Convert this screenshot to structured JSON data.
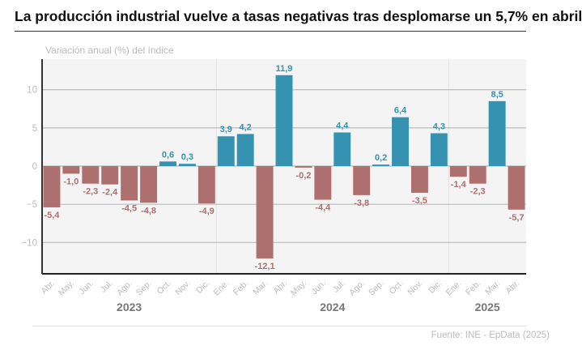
{
  "title": "La producción industrial vuelve a tasas negativas tras desplomarse un 5,7% en abril",
  "source": "Fuente: INE - EpData (2025)",
  "chart_data": {
    "type": "bar",
    "ylabel": "Variación anual (%) del índice",
    "categories": [
      "Abr.",
      "May.",
      "Jun.",
      "Jul.",
      "Ago.",
      "Sep.",
      "Oct.",
      "Nov.",
      "Dic.",
      "Ene.",
      "Feb.",
      "Mar.",
      "Abr.",
      "May.",
      "Jun.",
      "Jul.",
      "Ago.",
      "Sep.",
      "Oct.",
      "Nov.",
      "Dic.",
      "Ene.",
      "Feb.",
      "Mar.",
      "Abr."
    ],
    "years": [
      {
        "label": "2023",
        "start": 0,
        "end": 8
      },
      {
        "label": "2024",
        "start": 9,
        "end": 20
      },
      {
        "label": "2025",
        "start": 21,
        "end": 24
      }
    ],
    "values": [
      -5.4,
      -1.0,
      -2.3,
      -2.4,
      -4.5,
      -4.8,
      0.6,
      0.3,
      -4.9,
      3.9,
      4.2,
      -12.1,
      11.9,
      -0.2,
      -4.4,
      4.4,
      -3.8,
      0.2,
      6.4,
      -3.5,
      4.3,
      -1.4,
      -2.3,
      8.5,
      -5.7
    ],
    "data_labels": [
      "-5,4",
      "-1,0",
      "-2,3",
      "-2,4",
      "-4,5",
      "-4,8",
      "0,6",
      "0,3",
      "-4,9",
      "3,9",
      "4,2",
      "-12,1",
      "11,9",
      "-0,2",
      "-4,4",
      "4,4",
      "-3,8",
      "0,2",
      "6,4",
      "-3,5",
      "4,3",
      "-1,4",
      "-2,3",
      "8,5",
      "-5,7"
    ],
    "yticks": [
      10,
      5,
      0,
      -5,
      -10
    ],
    "ytick_labels": [
      "10",
      "5",
      "0",
      "−5",
      "−10"
    ],
    "ylim": [
      -14.1,
      14.0
    ],
    "grid": true,
    "colors": {
      "positive": "#3592b0",
      "negative": "#ae6f6f",
      "plot_bg": "#f4f4f4"
    }
  }
}
